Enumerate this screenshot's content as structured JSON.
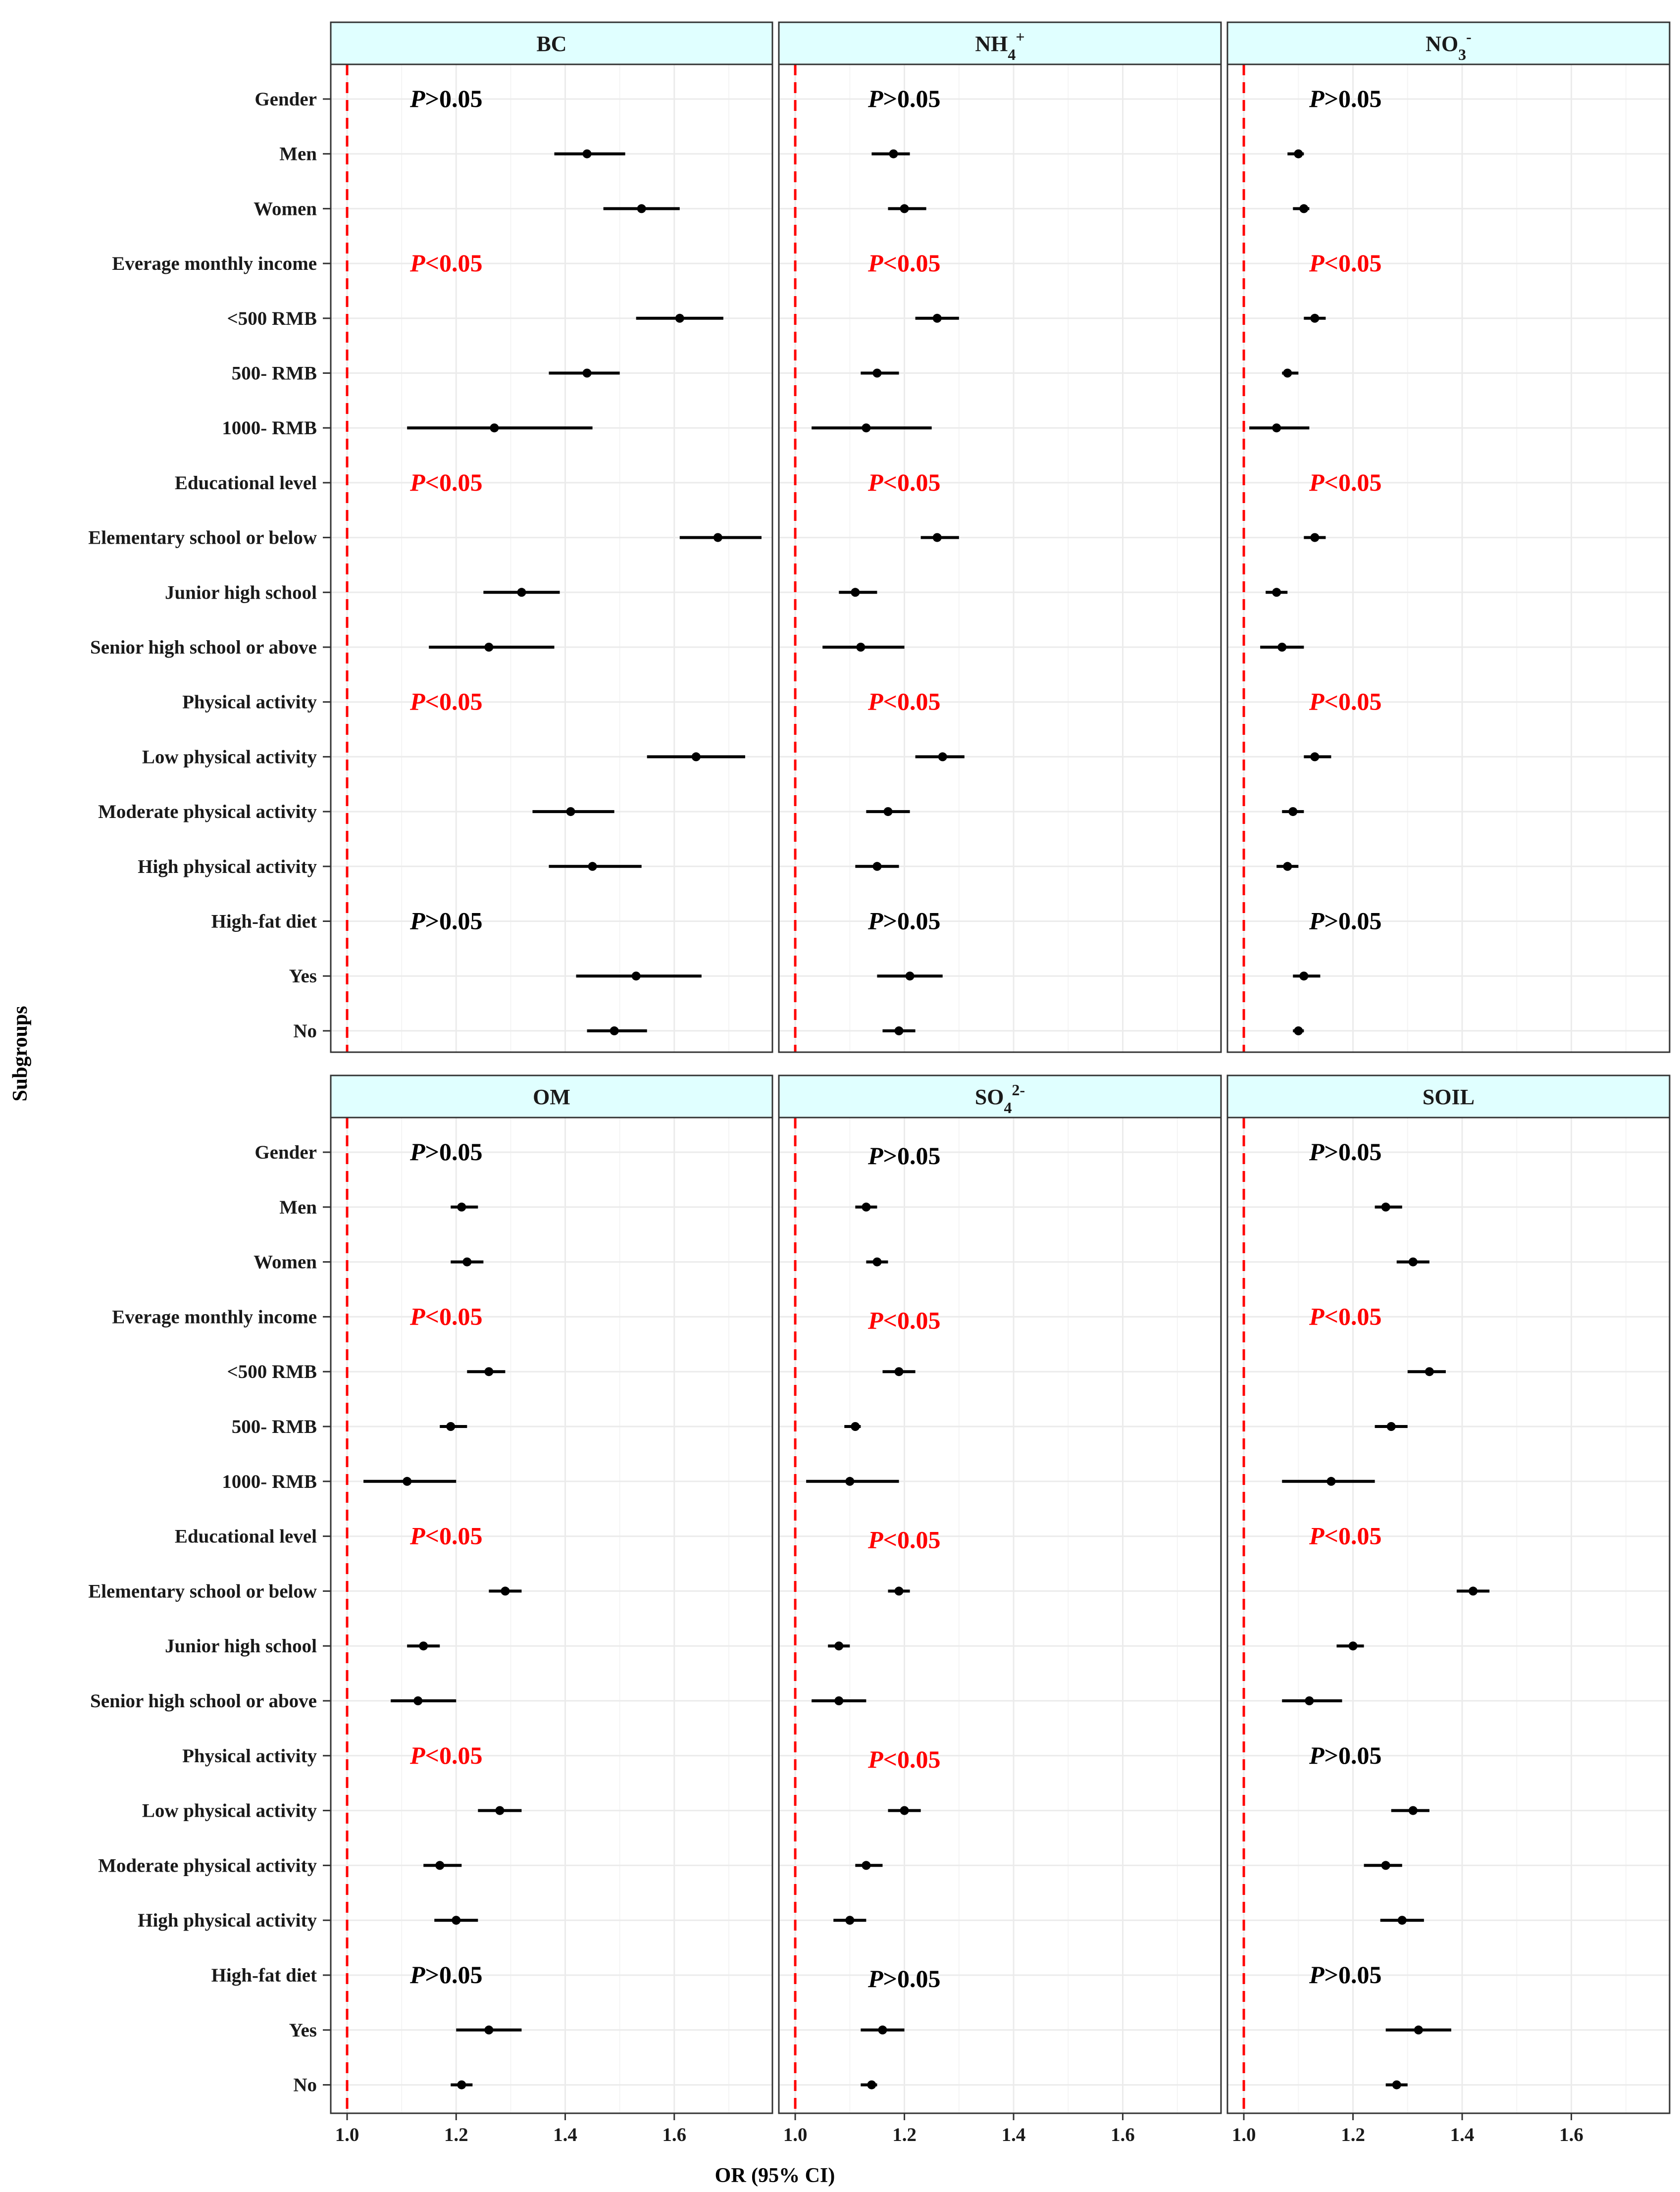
{
  "chart_data": {
    "type": "forest",
    "xlabel": "OR (95% CI)",
    "ylabel": "Subgroups",
    "xlim": [
      0.97,
      1.78
    ],
    "xticks": [
      1.0,
      1.2,
      1.4,
      1.6
    ],
    "xtick_labels": [
      "1.0",
      "1.2",
      "1.4",
      "1.6"
    ],
    "reference_value": 1.0,
    "rows": [
      {
        "label": "Gender",
        "header": true
      },
      {
        "label": "Men"
      },
      {
        "label": "Women"
      },
      {
        "label": "Everage monthly income",
        "header": true
      },
      {
        "label": "<500 RMB"
      },
      {
        "label": "500- RMB"
      },
      {
        "label": "1000- RMB"
      },
      {
        "label": "Educational level",
        "header": true
      },
      {
        "label": "Elementary school or below"
      },
      {
        "label": "Junior high school"
      },
      {
        "label": "Senior high school or above"
      },
      {
        "label": "Physical activity",
        "header": true
      },
      {
        "label": "Low physical activity"
      },
      {
        "label": "Moderate physical activity"
      },
      {
        "label": "High physical activity"
      },
      {
        "label": "High-fat diet",
        "header": true
      },
      {
        "label": "Yes"
      },
      {
        "label": "No"
      }
    ],
    "panels": [
      {
        "name": "BC",
        "p_values": [
          "P>0.05",
          "P<0.05",
          "P<0.05",
          "P<0.05",
          "P>0.05"
        ],
        "estimates": [
          null,
          1.44,
          1.54,
          null,
          1.61,
          1.44,
          1.27,
          null,
          1.68,
          1.32,
          1.26,
          null,
          1.64,
          1.41,
          1.45,
          null,
          1.53,
          1.49
        ],
        "lower": [
          null,
          1.38,
          1.47,
          null,
          1.53,
          1.37,
          1.11,
          null,
          1.61,
          1.25,
          1.15,
          null,
          1.55,
          1.34,
          1.37,
          null,
          1.42,
          1.44
        ],
        "upper": [
          null,
          1.51,
          1.61,
          null,
          1.69,
          1.5,
          1.45,
          null,
          1.76,
          1.39,
          1.38,
          null,
          1.73,
          1.49,
          1.54,
          null,
          1.65,
          1.55
        ]
      },
      {
        "name": "NH4+",
        "p_values": [
          "P>0.05",
          "P<0.05",
          "P<0.05",
          "P<0.05",
          "P>0.05"
        ],
        "estimates": [
          null,
          1.18,
          1.2,
          null,
          1.26,
          1.15,
          1.13,
          null,
          1.26,
          1.11,
          1.12,
          null,
          1.27,
          1.17,
          1.15,
          null,
          1.21,
          1.19
        ],
        "lower": [
          null,
          1.14,
          1.17,
          null,
          1.22,
          1.12,
          1.03,
          null,
          1.23,
          1.08,
          1.05,
          null,
          1.22,
          1.13,
          1.11,
          null,
          1.15,
          1.16
        ],
        "upper": [
          null,
          1.21,
          1.24,
          null,
          1.3,
          1.19,
          1.25,
          null,
          1.3,
          1.15,
          1.2,
          null,
          1.31,
          1.21,
          1.19,
          null,
          1.27,
          1.22
        ]
      },
      {
        "name": "NO3-",
        "p_values": [
          "P>0.05",
          "P<0.05",
          "P<0.05",
          "P<0.05",
          "P>0.05"
        ],
        "estimates": [
          null,
          1.1,
          1.11,
          null,
          1.13,
          1.08,
          1.06,
          null,
          1.13,
          1.06,
          1.07,
          null,
          1.13,
          1.09,
          1.08,
          null,
          1.11,
          1.1
        ],
        "lower": [
          null,
          1.08,
          1.09,
          null,
          1.11,
          1.07,
          1.01,
          null,
          1.11,
          1.04,
          1.03,
          null,
          1.11,
          1.07,
          1.06,
          null,
          1.09,
          1.09
        ],
        "upper": [
          null,
          1.11,
          1.12,
          null,
          1.15,
          1.1,
          1.12,
          null,
          1.15,
          1.08,
          1.11,
          null,
          1.16,
          1.11,
          1.1,
          null,
          1.14,
          1.11
        ]
      },
      {
        "name": "OM",
        "p_values": [
          "P>0.05",
          "P<0.05",
          "P<0.05",
          "P<0.05",
          "P>0.05"
        ],
        "estimates": [
          null,
          1.21,
          1.22,
          null,
          1.26,
          1.19,
          1.11,
          null,
          1.29,
          1.14,
          1.13,
          null,
          1.28,
          1.17,
          1.2,
          null,
          1.26,
          1.21
        ],
        "lower": [
          null,
          1.19,
          1.19,
          null,
          1.22,
          1.17,
          1.03,
          null,
          1.26,
          1.11,
          1.08,
          null,
          1.24,
          1.14,
          1.16,
          null,
          1.2,
          1.19
        ],
        "upper": [
          null,
          1.24,
          1.25,
          null,
          1.29,
          1.22,
          1.2,
          null,
          1.32,
          1.17,
          1.2,
          null,
          1.32,
          1.21,
          1.24,
          null,
          1.32,
          1.23
        ]
      },
      {
        "name": "SO42-",
        "p_values": [
          "P>0.05",
          "P<0.05",
          "P<0.05",
          "P<0.05",
          "P>0.05"
        ],
        "estimates": [
          null,
          1.13,
          1.15,
          null,
          1.19,
          1.11,
          1.1,
          null,
          1.19,
          1.08,
          1.08,
          null,
          1.2,
          1.13,
          1.1,
          null,
          1.16,
          1.14
        ],
        "lower": [
          null,
          1.11,
          1.13,
          null,
          1.16,
          1.09,
          1.02,
          null,
          1.17,
          1.06,
          1.03,
          null,
          1.17,
          1.11,
          1.07,
          null,
          1.12,
          1.12
        ],
        "upper": [
          null,
          1.15,
          1.17,
          null,
          1.22,
          1.12,
          1.19,
          null,
          1.21,
          1.1,
          1.13,
          null,
          1.23,
          1.16,
          1.13,
          null,
          1.2,
          1.15
        ]
      },
      {
        "name": "SOIL",
        "p_values": [
          "P>0.05",
          "P<0.05",
          "P<0.05",
          "P>0.05",
          "P>0.05"
        ],
        "estimates": [
          null,
          1.26,
          1.31,
          null,
          1.34,
          1.27,
          1.16,
          null,
          1.42,
          1.2,
          1.12,
          null,
          1.31,
          1.26,
          1.29,
          null,
          1.32,
          1.28
        ],
        "lower": [
          null,
          1.24,
          1.28,
          null,
          1.3,
          1.24,
          1.07,
          null,
          1.39,
          1.17,
          1.07,
          null,
          1.27,
          1.22,
          1.25,
          null,
          1.26,
          1.26
        ],
        "upper": [
          null,
          1.29,
          1.34,
          null,
          1.37,
          1.3,
          1.24,
          null,
          1.45,
          1.22,
          1.18,
          null,
          1.34,
          1.29,
          1.33,
          null,
          1.38,
          1.3
        ]
      }
    ]
  }
}
